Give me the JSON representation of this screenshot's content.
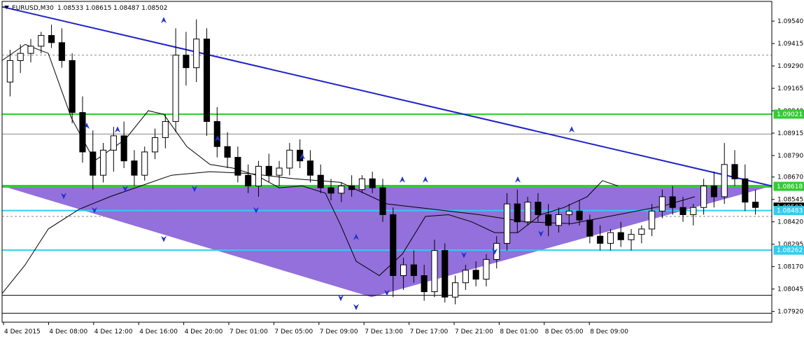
{
  "header": {
    "symbol": "EURUSD,M30",
    "ohlc": "1.08533 1.08615 1.08487 1.08502"
  },
  "chart_data": {
    "type": "candlestick",
    "symbol": "EURUSD",
    "timeframe": "M30",
    "ylim": [
      1.0786,
      1.0965
    ],
    "y_ticks": [
      "1.09540",
      "1.09415",
      "1.09290",
      "1.09165",
      "1.09040",
      "1.08915",
      "1.08790",
      "1.08670",
      "1.08545",
      "1.08420",
      "1.08295",
      "1.08170",
      "1.08045",
      "1.07920"
    ],
    "x_ticks": [
      "4 Dec 2015",
      "4 Dec 08:00",
      "4 Dec 12:00",
      "4 Dec 16:00",
      "4 Dec 20:00",
      "7 Dec 01:00",
      "7 Dec 05:00",
      "7 Dec 09:00",
      "7 Dec 13:00",
      "7 Dec 17:00",
      "7 Dec 21:00",
      "8 Dec 01:00",
      "8 Dec 05:00",
      "8 Dec 09:00"
    ],
    "price_tags": [
      {
        "value": 1.09021,
        "label": "1.09021",
        "color": "#33cc33"
      },
      {
        "value": 1.08618,
        "label": "1.08618",
        "color": "#33cc33"
      },
      {
        "value": 1.08502,
        "label": "1.08502",
        "color": "#000000"
      },
      {
        "value": 1.08483,
        "label": "1.08483",
        "color": "#33ccee"
      },
      {
        "value": 1.08262,
        "label": "1.08262",
        "color": "#33ccee"
      }
    ],
    "horizontal_lines": [
      {
        "value": 1.09021,
        "color": "#33cc33",
        "style": "solid",
        "width": 2
      },
      {
        "value": 1.08618,
        "color": "#33cc33",
        "style": "solid",
        "width": 4
      },
      {
        "value": 1.08483,
        "color": "#33ccee",
        "style": "solid",
        "width": 2
      },
      {
        "value": 1.08262,
        "color": "#33ccee",
        "style": "solid",
        "width": 2
      },
      {
        "value": 1.0935,
        "color": "#888888",
        "style": "dashed",
        "width": 1
      },
      {
        "value": 1.0891,
        "color": "#888888",
        "style": "solid",
        "width": 1
      },
      {
        "value": 1.0845,
        "color": "#888888",
        "style": "dashed",
        "width": 1
      },
      {
        "value": 1.0801,
        "color": "#000000",
        "style": "solid",
        "width": 1
      },
      {
        "value": 1.0791,
        "color": "#000000",
        "style": "solid",
        "width": 1
      }
    ],
    "trendline": {
      "color": "#1f22c8",
      "from": [
        0.0,
        1.0962
      ],
      "to": [
        1.0,
        1.0862
      ]
    },
    "triangle": {
      "color": "#9370db",
      "points": [
        [
          0.0,
          1.0862
        ],
        [
          0.48,
          1.08
        ],
        [
          1.0,
          1.0862
        ]
      ]
    },
    "candles": [
      [
        1.092,
        1.0938,
        1.0912,
        1.0932
      ],
      [
        1.0932,
        1.0941,
        1.0925,
        1.0936
      ],
      [
        1.0936,
        1.0944,
        1.0931,
        1.094
      ],
      [
        1.094,
        1.0948,
        1.0936,
        1.0946
      ],
      [
        1.0946,
        1.0952,
        1.0939,
        1.0942
      ],
      [
        1.0942,
        1.095,
        1.0928,
        1.0932
      ],
      [
        1.0932,
        1.0936,
        1.0897,
        1.0903
      ],
      [
        1.0903,
        1.0912,
        1.0875,
        1.0881
      ],
      [
        1.0881,
        1.0893,
        1.086,
        1.0868
      ],
      [
        1.0868,
        1.0886,
        1.0864,
        1.0882
      ],
      [
        1.0882,
        1.0895,
        1.087,
        1.089
      ],
      [
        1.089,
        1.0898,
        1.0872,
        1.0876
      ],
      [
        1.0876,
        1.0882,
        1.0862,
        1.0868
      ],
      [
        1.0868,
        1.0884,
        1.0865,
        1.0881
      ],
      [
        1.0881,
        1.0894,
        1.0877,
        1.0889
      ],
      [
        1.0889,
        1.0902,
        1.0883,
        1.0898
      ],
      [
        1.0898,
        1.095,
        1.0892,
        1.0935
      ],
      [
        1.0935,
        1.0948,
        1.0918,
        1.0928
      ],
      [
        1.0928,
        1.0955,
        1.092,
        1.0944
      ],
      [
        1.0944,
        1.095,
        1.089,
        1.0898
      ],
      [
        1.0898,
        1.0906,
        1.0878,
        1.0884
      ],
      [
        1.0884,
        1.0892,
        1.0872,
        1.0878
      ],
      [
        1.0878,
        1.0884,
        1.0864,
        1.0868
      ],
      [
        1.0868,
        1.0874,
        1.0858,
        1.0862
      ],
      [
        1.0862,
        1.0876,
        1.0856,
        1.0873
      ],
      [
        1.0873,
        1.088,
        1.0864,
        1.0868
      ],
      [
        1.0868,
        1.0876,
        1.0862,
        1.0872
      ],
      [
        1.0872,
        1.0886,
        1.0868,
        1.0882
      ],
      [
        1.0882,
        1.0888,
        1.0872,
        1.0876
      ],
      [
        1.0876,
        1.0882,
        1.0864,
        1.0868
      ],
      [
        1.0868,
        1.0874,
        1.0858,
        1.0861
      ],
      [
        1.0861,
        1.0866,
        1.0854,
        1.0858
      ],
      [
        1.0858,
        1.0864,
        1.0853,
        1.0862
      ],
      [
        1.0862,
        1.0868,
        1.0856,
        1.086
      ],
      [
        1.086,
        1.0868,
        1.0858,
        1.0866
      ],
      [
        1.0866,
        1.087,
        1.0858,
        1.0861
      ],
      [
        1.0861,
        1.0866,
        1.0842,
        1.0846
      ],
      [
        1.0846,
        1.085,
        1.08,
        1.0812
      ],
      [
        1.0812,
        1.0822,
        1.0804,
        1.0818
      ],
      [
        1.0818,
        1.0826,
        1.0808,
        1.0812
      ],
      [
        1.0812,
        1.0818,
        1.0798,
        1.0803
      ],
      [
        1.0803,
        1.0832,
        1.08,
        1.0826
      ],
      [
        1.0826,
        1.083,
        1.0797,
        1.08
      ],
      [
        1.08,
        1.0812,
        1.0796,
        1.0808
      ],
      [
        1.0808,
        1.0818,
        1.0804,
        1.0815
      ],
      [
        1.0815,
        1.082,
        1.0806,
        1.081
      ],
      [
        1.081,
        1.0824,
        1.0806,
        1.0821
      ],
      [
        1.0821,
        1.0834,
        1.0816,
        1.083
      ],
      [
        1.083,
        1.0858,
        1.0826,
        1.0852
      ],
      [
        1.0852,
        1.086,
        1.0836,
        1.0842
      ],
      [
        1.0842,
        1.0856,
        1.084,
        1.0853
      ],
      [
        1.0853,
        1.0858,
        1.0842,
        1.0846
      ],
      [
        1.0846,
        1.0852,
        1.0834,
        1.084
      ],
      [
        1.084,
        1.085,
        1.0836,
        1.0846
      ],
      [
        1.0846,
        1.0852,
        1.084,
        1.0848
      ],
      [
        1.0848,
        1.0854,
        1.084,
        1.0843
      ],
      [
        1.0843,
        1.0846,
        1.083,
        1.0834
      ],
      [
        1.0834,
        1.084,
        1.0826,
        1.083
      ],
      [
        1.083,
        1.0838,
        1.0826,
        1.0836
      ],
      [
        1.0836,
        1.0842,
        1.0828,
        1.0832
      ],
      [
        1.0832,
        1.0838,
        1.0826,
        1.0835
      ],
      [
        1.0835,
        1.084,
        1.083,
        1.0838
      ],
      [
        1.0838,
        1.0852,
        1.0834,
        1.0848
      ],
      [
        1.0848,
        1.086,
        1.0844,
        1.0856
      ],
      [
        1.0856,
        1.0862,
        1.0846,
        1.085
      ],
      [
        1.085,
        1.0856,
        1.0842,
        1.0846
      ],
      [
        1.0846,
        1.0852,
        1.084,
        1.085
      ],
      [
        1.085,
        1.0866,
        1.0846,
        1.0862
      ],
      [
        1.0862,
        1.087,
        1.085,
        1.0856
      ],
      [
        1.0856,
        1.0886,
        1.0852,
        1.0874
      ],
      [
        1.0874,
        1.0882,
        1.0862,
        1.0866
      ],
      [
        1.0866,
        1.0874,
        1.0848,
        1.0853
      ],
      [
        1.0853,
        1.086,
        1.0846,
        1.085
      ]
    ],
    "ma_slow": [
      [
        0.0,
        1.0802
      ],
      [
        0.03,
        1.0818
      ],
      [
        0.06,
        1.0838
      ],
      [
        0.1,
        1.0849
      ],
      [
        0.14,
        1.0856
      ],
      [
        0.18,
        1.0862
      ],
      [
        0.22,
        1.0868
      ],
      [
        0.27,
        1.087
      ],
      [
        0.32,
        1.0869
      ],
      [
        0.38,
        1.0866
      ],
      [
        0.44,
        1.0864
      ],
      [
        0.5,
        1.0852
      ],
      [
        0.56,
        1.0849
      ],
      [
        0.62,
        1.0846
      ],
      [
        0.68,
        1.0842
      ],
      [
        0.74,
        1.0841
      ],
      [
        0.8,
        1.0846
      ],
      [
        0.86,
        1.0851
      ],
      [
        0.9,
        1.0856
      ]
    ],
    "ma_fast": [
      [
        0.0,
        1.0932
      ],
      [
        0.03,
        1.0941
      ],
      [
        0.06,
        1.0936
      ],
      [
        0.09,
        1.09
      ],
      [
        0.12,
        1.0876
      ],
      [
        0.16,
        1.0888
      ],
      [
        0.19,
        1.0904
      ],
      [
        0.21,
        1.0902
      ],
      [
        0.24,
        1.0884
      ],
      [
        0.27,
        1.0874
      ],
      [
        0.3,
        1.0872
      ],
      [
        0.33,
        1.0868
      ],
      [
        0.36,
        1.0861
      ],
      [
        0.39,
        1.0862
      ],
      [
        0.42,
        1.0858
      ],
      [
        0.44,
        1.084
      ],
      [
        0.46,
        1.082
      ],
      [
        0.49,
        1.0812
      ],
      [
        0.52,
        1.0824
      ],
      [
        0.55,
        1.0845
      ],
      [
        0.58,
        1.0846
      ],
      [
        0.61,
        1.0842
      ],
      [
        0.64,
        1.0836
      ],
      [
        0.67,
        1.0836
      ],
      [
        0.7,
        1.0846
      ],
      [
        0.73,
        1.085
      ],
      [
        0.76,
        1.0856
      ],
      [
        0.78,
        1.0865
      ],
      [
        0.8,
        1.0862
      ]
    ],
    "fractals_up": [
      [
        0.11,
        1.0895
      ],
      [
        0.15,
        1.0893
      ],
      [
        0.21,
        1.0954
      ],
      [
        0.28,
        1.0888
      ],
      [
        0.39,
        1.0878
      ],
      [
        0.46,
        1.0833
      ],
      [
        0.52,
        1.0865
      ],
      [
        0.55,
        1.0865
      ],
      [
        0.67,
        1.0865
      ],
      [
        0.74,
        1.0893
      ]
    ],
    "fractals_down": [
      [
        0.08,
        1.0857
      ],
      [
        0.12,
        1.0849
      ],
      [
        0.16,
        1.0861
      ],
      [
        0.21,
        1.0833
      ],
      [
        0.25,
        1.0861
      ],
      [
        0.33,
        1.0849
      ],
      [
        0.44,
        1.08
      ],
      [
        0.46,
        1.0795
      ],
      [
        0.5,
        1.0803
      ],
      [
        0.6,
        1.0824
      ],
      [
        0.64,
        1.0826
      ],
      [
        0.7,
        1.0836
      ]
    ]
  }
}
